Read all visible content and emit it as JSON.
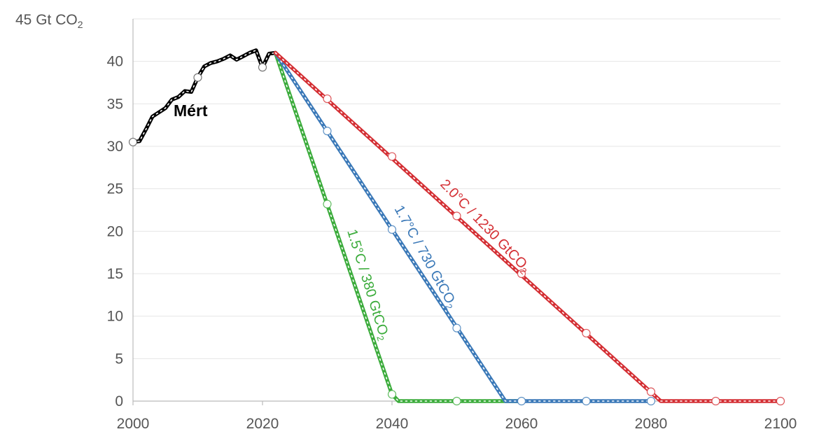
{
  "chart_data": {
    "type": "line",
    "y_unit_label": "Gt CO",
    "y_unit_sub": "2",
    "xlim": [
      2000,
      2100
    ],
    "ylim": [
      0,
      45
    ],
    "x_ticks": [
      2000,
      2020,
      2040,
      2060,
      2080,
      2100
    ],
    "y_ticks": [
      0,
      5,
      10,
      15,
      20,
      25,
      30,
      35,
      40,
      45
    ],
    "grid": true,
    "series": [
      {
        "name": "Mért",
        "color": "#000000",
        "points": [
          [
            2000,
            30.5
          ],
          [
            2001,
            30.6
          ],
          [
            2002,
            32
          ],
          [
            2003,
            33.5
          ],
          [
            2004,
            34
          ],
          [
            2005,
            34.5
          ],
          [
            2006,
            35.5
          ],
          [
            2007,
            35.8
          ],
          [
            2008,
            36.5
          ],
          [
            2009,
            36.4
          ],
          [
            2010,
            38.1
          ],
          [
            2011,
            39.4
          ],
          [
            2012,
            39.8
          ],
          [
            2013,
            40
          ],
          [
            2014,
            40.3
          ],
          [
            2015,
            40.7
          ],
          [
            2016,
            40.2
          ],
          [
            2017,
            40.6
          ],
          [
            2018,
            41
          ],
          [
            2019,
            41.3
          ],
          [
            2020,
            39.3
          ],
          [
            2021,
            40.9
          ],
          [
            2022,
            41
          ]
        ],
        "markers": [
          [
            2000,
            30.5
          ],
          [
            2010,
            38.1
          ],
          [
            2020,
            39.3
          ]
        ]
      },
      {
        "name": "1.5°C / 380 GtCO",
        "name_sub": "2",
        "color": "#3cac3c",
        "points": [
          [
            2022,
            41
          ],
          [
            2040,
            0.8
          ],
          [
            2041,
            0
          ],
          [
            2060,
            0
          ]
        ],
        "markers": [
          [
            2030,
            23.2
          ],
          [
            2040,
            0.8
          ],
          [
            2050,
            0
          ]
        ]
      },
      {
        "name": "1.7°C / 730 GtCO",
        "name_sub": "2",
        "color": "#3b79b8",
        "points": [
          [
            2022,
            41
          ],
          [
            2057.5,
            0
          ],
          [
            2080,
            0
          ]
        ],
        "markers": [
          [
            2030,
            31.8
          ],
          [
            2040,
            20.2
          ],
          [
            2050,
            8.6
          ],
          [
            2060,
            0
          ],
          [
            2070,
            0
          ],
          [
            2080,
            0
          ]
        ]
      },
      {
        "name": "2.0°C / 1230 GtCO",
        "name_sub": "2",
        "color": "#d42f34",
        "points": [
          [
            2022,
            41
          ],
          [
            2081.5,
            0
          ],
          [
            2100,
            0
          ]
        ],
        "markers": [
          [
            2030,
            35.6
          ],
          [
            2040,
            28.8
          ],
          [
            2050,
            21.8
          ],
          [
            2060,
            15
          ],
          [
            2070,
            8
          ],
          [
            2080,
            1.1
          ],
          [
            2090,
            0
          ],
          [
            2100,
            0
          ]
        ]
      }
    ]
  }
}
